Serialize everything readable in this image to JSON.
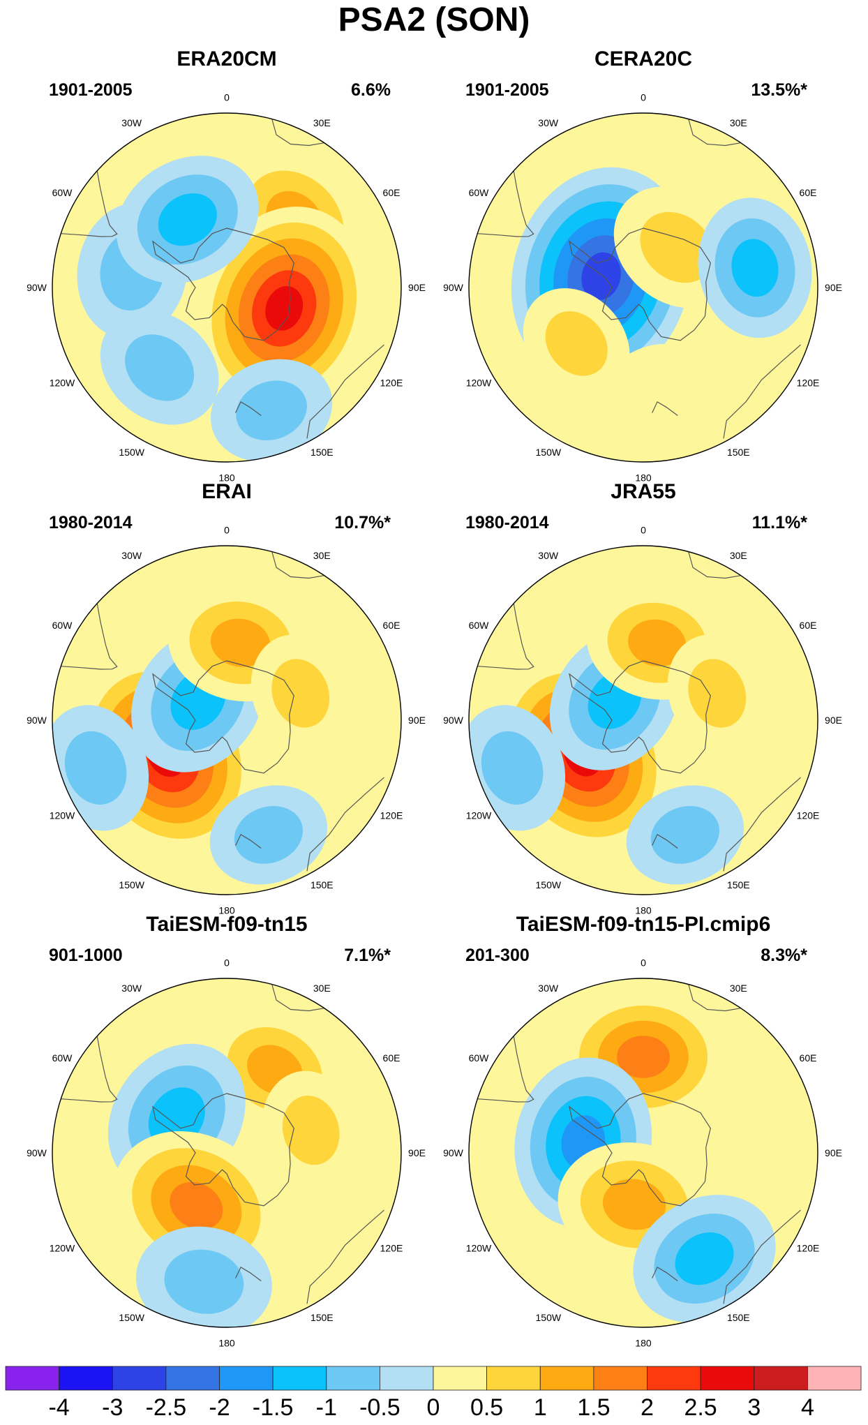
{
  "title": "PSA2 (SON)",
  "colors": {
    "levels": [
      "#8a22ee",
      "#1c13f5",
      "#2e43e6",
      "#3474e3",
      "#1f97f7",
      "#0bc2fb",
      "#6ec8f4",
      "#b2dff3",
      "#fef69a",
      "#fed53b",
      "#feaa13",
      "#fc8015",
      "#fd390e",
      "#ea0a0a",
      "#cc1c1e",
      "#feb4b4"
    ],
    "coast": "#555555"
  },
  "longitude_labels": [
    "0",
    "30E",
    "60E",
    "90E",
    "120E",
    "150E",
    "180",
    "150W",
    "120W",
    "90W",
    "60W",
    "30W"
  ],
  "panels": [
    {
      "name": "ERA20CM",
      "period": "1901-2005",
      "variance": "6.6%",
      "blobs": [
        {
          "lon": 45,
          "r": 0.55,
          "v": 1.6
        },
        {
          "lon": 110,
          "r": 0.35,
          "v": 2.9
        },
        {
          "lon": -80,
          "r": 0.55,
          "v": -1.2
        },
        {
          "lon": -30,
          "r": 0.45,
          "v": -1.5
        },
        {
          "lon": 160,
          "r": 0.75,
          "v": -0.9
        },
        {
          "lon": -140,
          "r": 0.6,
          "v": -1.0
        }
      ]
    },
    {
      "name": "CERA20C",
      "period": "1901-2005",
      "variance": "13.5%*",
      "blobs": [
        {
          "lon": -75,
          "r": 0.25,
          "v": -3.2
        },
        {
          "lon": 40,
          "r": 0.3,
          "v": 1.2
        },
        {
          "lon": 80,
          "r": 0.65,
          "v": -1.3
        },
        {
          "lon": -130,
          "r": 0.5,
          "v": 0.8
        },
        {
          "lon": 170,
          "r": 0.6,
          "v": 0.7
        }
      ]
    },
    {
      "name": "ERAI",
      "period": "1980-2014",
      "variance": "10.7%*",
      "blobs": [
        {
          "lon": -120,
          "r": 0.4,
          "v": 2.9
        },
        {
          "lon": -55,
          "r": 0.2,
          "v": -1.6
        },
        {
          "lon": 10,
          "r": 0.45,
          "v": 1.4
        },
        {
          "lon": 70,
          "r": 0.45,
          "v": 0.8
        },
        {
          "lon": -110,
          "r": 0.8,
          "v": -1.0
        },
        {
          "lon": 160,
          "r": 0.7,
          "v": -0.8
        }
      ]
    },
    {
      "name": "JRA55",
      "period": "1980-2014",
      "variance": "11.1%*",
      "blobs": [
        {
          "lon": -120,
          "r": 0.4,
          "v": 2.8
        },
        {
          "lon": -55,
          "r": 0.2,
          "v": -1.5
        },
        {
          "lon": 10,
          "r": 0.45,
          "v": 1.3
        },
        {
          "lon": 70,
          "r": 0.45,
          "v": 0.8
        },
        {
          "lon": -110,
          "r": 0.8,
          "v": -1.0
        },
        {
          "lon": 160,
          "r": 0.7,
          "v": -0.8
        }
      ]
    },
    {
      "name": "TaiESM-f09-tn15",
      "period": "901-1000",
      "variance": "7.1%*",
      "blobs": [
        {
          "lon": 30,
          "r": 0.55,
          "v": 1.3
        },
        {
          "lon": -55,
          "r": 0.35,
          "v": -1.7
        },
        {
          "lon": -150,
          "r": 0.35,
          "v": 2.1
        },
        {
          "lon": -170,
          "r": 0.75,
          "v": -1.2
        },
        {
          "lon": 75,
          "r": 0.5,
          "v": 0.8
        }
      ]
    },
    {
      "name": "TaiESM-f09-tn15-PI.cmip6",
      "period": "201-300",
      "variance": "8.3%*",
      "blobs": [
        {
          "lon": 0,
          "r": 0.55,
          "v": 1.9
        },
        {
          "lon": -80,
          "r": 0.35,
          "v": -2.0
        },
        {
          "lon": -170,
          "r": 0.3,
          "v": 1.6
        },
        {
          "lon": 150,
          "r": 0.7,
          "v": -1.5
        }
      ]
    }
  ],
  "colorbar": {
    "labels": [
      "-4",
      "-3",
      "-2.5",
      "-2",
      "-1.5",
      "-1",
      "-0.5",
      "0",
      "0.5",
      "1",
      "1.5",
      "2",
      "2.5",
      "3",
      "4"
    ]
  }
}
